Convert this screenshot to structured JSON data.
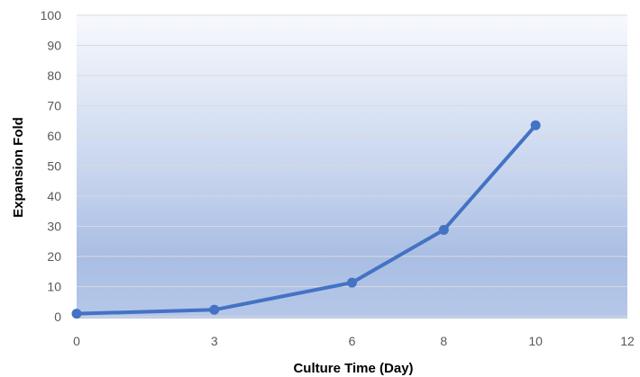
{
  "chart_data": {
    "type": "line",
    "title": "",
    "xlabel": "Culture Time (Day)",
    "ylabel": "Expansion Fold",
    "xlim": [
      0,
      12
    ],
    "ylim": [
      0,
      100
    ],
    "xticks": [
      0,
      3,
      6,
      8,
      10,
      12
    ],
    "yticks": [
      0,
      10,
      20,
      30,
      40,
      50,
      60,
      70,
      80,
      90,
      100
    ],
    "grid": true,
    "legend": "none",
    "series": [
      {
        "x": [
          0,
          3,
          6,
          8,
          10
        ],
        "values": [
          1,
          2.3,
          11.3,
          28.8,
          63.5
        ]
      }
    ],
    "colors": {
      "series": "#4472c4",
      "grid": "#d9d9d9",
      "background_top": "#f7f9fd",
      "background_bottom": "#a9bee3"
    }
  }
}
